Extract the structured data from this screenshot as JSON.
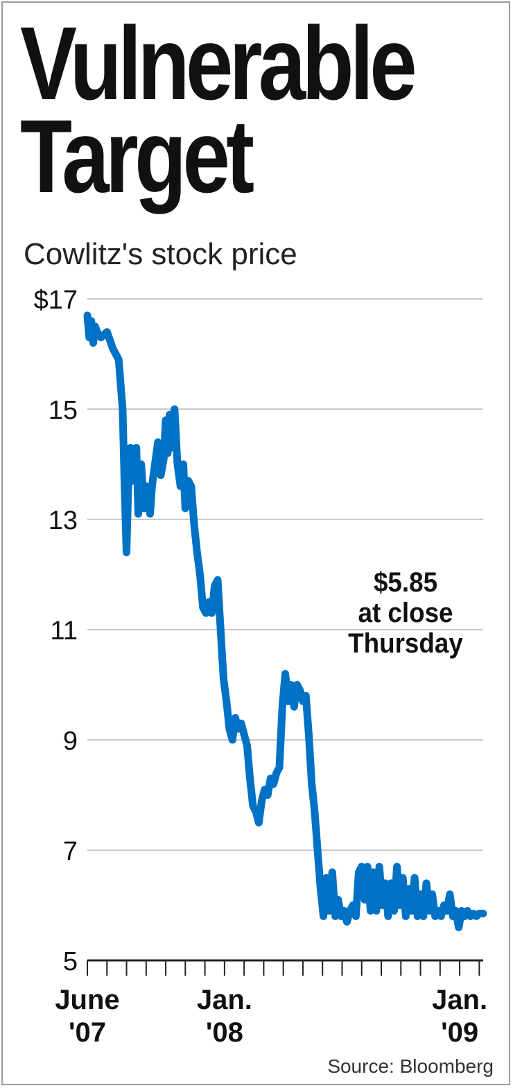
{
  "chart_data": {
    "type": "line",
    "title": "Vulnerable Target",
    "subtitle": "Cowlitz's stock price",
    "source": "Source: Bloomberg",
    "annotation": [
      "$5.85",
      "at close",
      "Thursday"
    ],
    "ylim": [
      5,
      17
    ],
    "y_ticks": [
      17,
      15,
      13,
      11,
      9,
      7,
      5
    ],
    "y_tick_labels": [
      "$17",
      "15",
      "13",
      "11",
      "9",
      "7",
      "5"
    ],
    "x_tick_labels": [
      {
        "line1": "June",
        "line2": "'07",
        "month_index": 0
      },
      {
        "line1": "Jan.",
        "line2": "'08",
        "month_index": 7
      },
      {
        "line1": "Jan.",
        "line2": "'09",
        "month_index": 19
      }
    ],
    "x_month_ticks": 21,
    "grid": true,
    "series": [
      {
        "color": "#0072c6",
        "x": [
          0,
          0.1,
          0.2,
          0.3,
          0.4,
          0.5,
          0.7,
          1.0,
          1.3,
          1.6,
          1.8,
          1.9,
          2.0,
          2.1,
          2.2,
          2.35,
          2.5,
          2.6,
          2.75,
          2.9,
          3.05,
          3.2,
          3.3,
          3.45,
          3.6,
          3.75,
          3.9,
          4.0,
          4.1,
          4.2,
          4.3,
          4.45,
          4.6,
          4.75,
          4.9,
          5.0,
          5.15,
          5.3,
          5.45,
          5.6,
          5.75,
          5.9,
          6.05,
          6.2,
          6.35,
          6.5,
          6.65,
          6.8,
          6.95,
          7.1,
          7.25,
          7.4,
          7.55,
          7.7,
          7.85,
          8.0,
          8.15,
          8.3,
          8.45,
          8.6,
          8.75,
          8.9,
          9.05,
          9.2,
          9.35,
          9.5,
          9.65,
          9.8,
          9.95,
          10.1,
          10.25,
          10.4,
          10.55,
          10.7,
          10.85,
          11.0,
          11.15,
          11.3,
          11.45,
          11.6,
          11.75,
          11.9,
          12.05,
          12.2,
          12.35,
          12.5,
          12.65,
          12.8,
          12.95,
          13.1,
          13.25,
          13.4,
          13.55,
          13.7,
          13.85,
          14.0,
          14.15,
          14.3,
          14.45,
          14.6,
          14.75,
          14.9,
          15.05,
          15.2,
          15.35,
          15.5,
          15.65,
          15.8,
          15.95,
          16.1,
          16.25,
          16.4,
          16.55,
          16.7,
          16.85,
          17.0,
          17.15,
          17.3,
          17.45,
          17.6,
          17.75,
          17.9,
          18.05,
          18.2,
          18.35,
          18.5,
          18.65,
          18.8,
          18.95,
          19.1,
          19.25,
          19.4,
          19.55,
          19.7,
          19.85,
          20.0,
          20.2
        ],
        "values": [
          16.7,
          16.3,
          16.6,
          16.2,
          16.5,
          16.4,
          16.3,
          16.4,
          16.1,
          15.9,
          15.0,
          13.6,
          12.4,
          13.8,
          14.3,
          13.7,
          14.3,
          13.1,
          14.0,
          13.2,
          13.6,
          13.1,
          13.6,
          14.0,
          14.4,
          13.8,
          14.1,
          14.8,
          14.2,
          14.9,
          14.3,
          15.0,
          14.0,
          13.6,
          14.0,
          13.2,
          13.7,
          13.6,
          12.9,
          12.4,
          12.0,
          11.4,
          11.3,
          11.5,
          11.3,
          11.8,
          11.9,
          11.0,
          10.1,
          9.7,
          9.2,
          9.0,
          9.4,
          9.2,
          9.3,
          9.1,
          8.9,
          8.3,
          7.8,
          7.7,
          7.5,
          7.9,
          8.1,
          8.0,
          8.3,
          8.2,
          8.4,
          8.5,
          9.6,
          10.2,
          9.7,
          10.0,
          9.6,
          10.0,
          9.9,
          9.7,
          9.8,
          9.1,
          8.2,
          7.7,
          7.0,
          6.3,
          5.8,
          6.5,
          5.9,
          6.6,
          5.8,
          6.1,
          5.8,
          5.9,
          5.7,
          5.9,
          6.0,
          5.8,
          6.6,
          6.7,
          6.1,
          6.7,
          5.9,
          6.6,
          5.9,
          6.7,
          6.0,
          6.4,
          5.8,
          6.4,
          5.9,
          6.7,
          6.0,
          6.5,
          5.8,
          6.3,
          5.9,
          6.5,
          5.8,
          6.2,
          5.8,
          6.4,
          5.9,
          6.2,
          5.8,
          5.9,
          5.8,
          6.0,
          5.9,
          6.2,
          5.8,
          5.9,
          5.6,
          5.9,
          5.8,
          5.9,
          5.8,
          5.85,
          5.8,
          5.85,
          5.85
        ]
      }
    ]
  }
}
